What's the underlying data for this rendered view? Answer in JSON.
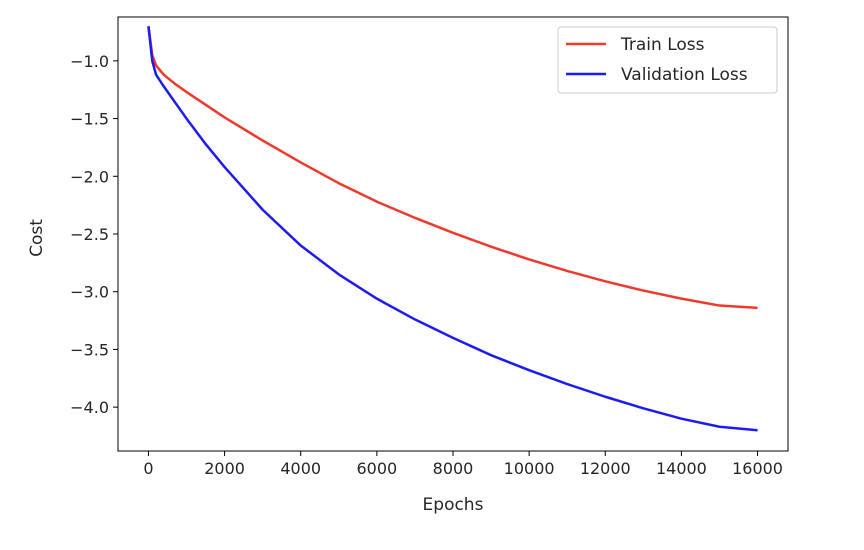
{
  "chart_data": {
    "type": "line",
    "title": "",
    "xlabel": "Epochs",
    "ylabel": "Cost",
    "xlim": [
      -800,
      16800
    ],
    "ylim": [
      -4.38,
      -0.62
    ],
    "xticks": [
      0,
      2000,
      4000,
      6000,
      8000,
      10000,
      12000,
      14000,
      16000
    ],
    "xtick_labels": [
      "0",
      "2000",
      "4000",
      "6000",
      "8000",
      "10000",
      "12000",
      "14000",
      "16000"
    ],
    "yticks": [
      -1.0,
      -1.5,
      -2.0,
      -2.5,
      -3.0,
      -3.5,
      -4.0
    ],
    "ytick_labels": [
      "−1.0",
      "−1.5",
      "−2.0",
      "−2.5",
      "−3.0",
      "−3.5",
      "−4.0"
    ],
    "grid": false,
    "legend_position": "top-right",
    "series": [
      {
        "name": "Train Loss",
        "color": "#ee3a2c",
        "x": [
          0,
          100,
          200,
          400,
          700,
          1000,
          1500,
          2000,
          3000,
          4000,
          5000,
          6000,
          7000,
          8000,
          9000,
          10000,
          11000,
          12000,
          13000,
          14000,
          15000,
          16000
        ],
        "y": [
          -0.7,
          -0.95,
          -1.04,
          -1.12,
          -1.2,
          -1.27,
          -1.38,
          -1.49,
          -1.69,
          -1.88,
          -2.06,
          -2.22,
          -2.36,
          -2.49,
          -2.61,
          -2.72,
          -2.82,
          -2.91,
          -2.99,
          -3.06,
          -3.12,
          -3.14
        ]
      },
      {
        "name": "Validation Loss",
        "color": "#1c1cf2",
        "x": [
          0,
          100,
          200,
          400,
          700,
          1000,
          1500,
          2000,
          3000,
          4000,
          5000,
          6000,
          7000,
          8000,
          9000,
          10000,
          11000,
          12000,
          13000,
          14000,
          15000,
          16000
        ],
        "y": [
          -0.7,
          -1.0,
          -1.12,
          -1.22,
          -1.36,
          -1.5,
          -1.72,
          -1.92,
          -2.29,
          -2.6,
          -2.85,
          -3.06,
          -3.24,
          -3.4,
          -3.55,
          -3.68,
          -3.8,
          -3.91,
          -4.01,
          -4.1,
          -4.17,
          -4.2
        ]
      }
    ]
  }
}
